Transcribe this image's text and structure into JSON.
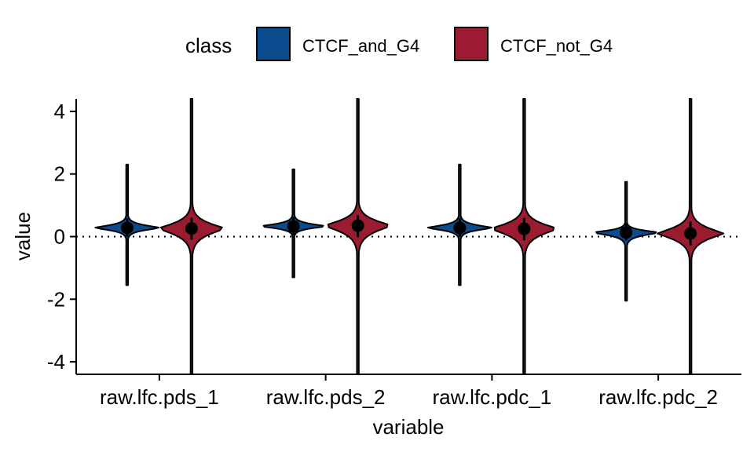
{
  "chart_data": {
    "type": "violin",
    "title": "",
    "xlabel": "variable",
    "ylabel": "value",
    "ylim": [
      -4.4,
      4.4
    ],
    "yticks": [
      -4,
      -2,
      0,
      2,
      4
    ],
    "ytick_labels": [
      "-4",
      "-2",
      "0",
      "2",
      "4"
    ],
    "categories": [
      "raw.lfc.pds_1",
      "raw.lfc.pds_2",
      "raw.lfc.pdc_1",
      "raw.lfc.pdc_2"
    ],
    "reference_line_y": 0,
    "grid": false,
    "legend": {
      "title": "class",
      "position": "top",
      "entries": [
        "CTCF_and_G4",
        "CTCF_not_G4"
      ]
    },
    "series": [
      {
        "name": "CTCF_and_G4",
        "color": "#0B4C8E",
        "min": [
          -1.55,
          -1.3,
          -1.55,
          -2.05
        ],
        "max": [
          2.3,
          2.15,
          2.3,
          1.75
        ],
        "median": [
          0.28,
          0.33,
          0.28,
          0.13
        ],
        "summary_low": [
          0.0,
          0.05,
          0.0,
          -0.12
        ],
        "summary_high": [
          0.58,
          0.62,
          0.58,
          0.42
        ]
      },
      {
        "name": "CTCF_not_G4",
        "color": "#9B1B30",
        "min": [
          -4.4,
          -4.4,
          -4.4,
          -4.4
        ],
        "max": [
          4.4,
          4.4,
          4.4,
          4.4
        ],
        "median": [
          0.26,
          0.35,
          0.25,
          0.1
        ],
        "summary_low": [
          -0.1,
          -0.02,
          -0.12,
          -0.28
        ],
        "summary_high": [
          0.6,
          0.68,
          0.6,
          0.48
        ]
      }
    ]
  }
}
